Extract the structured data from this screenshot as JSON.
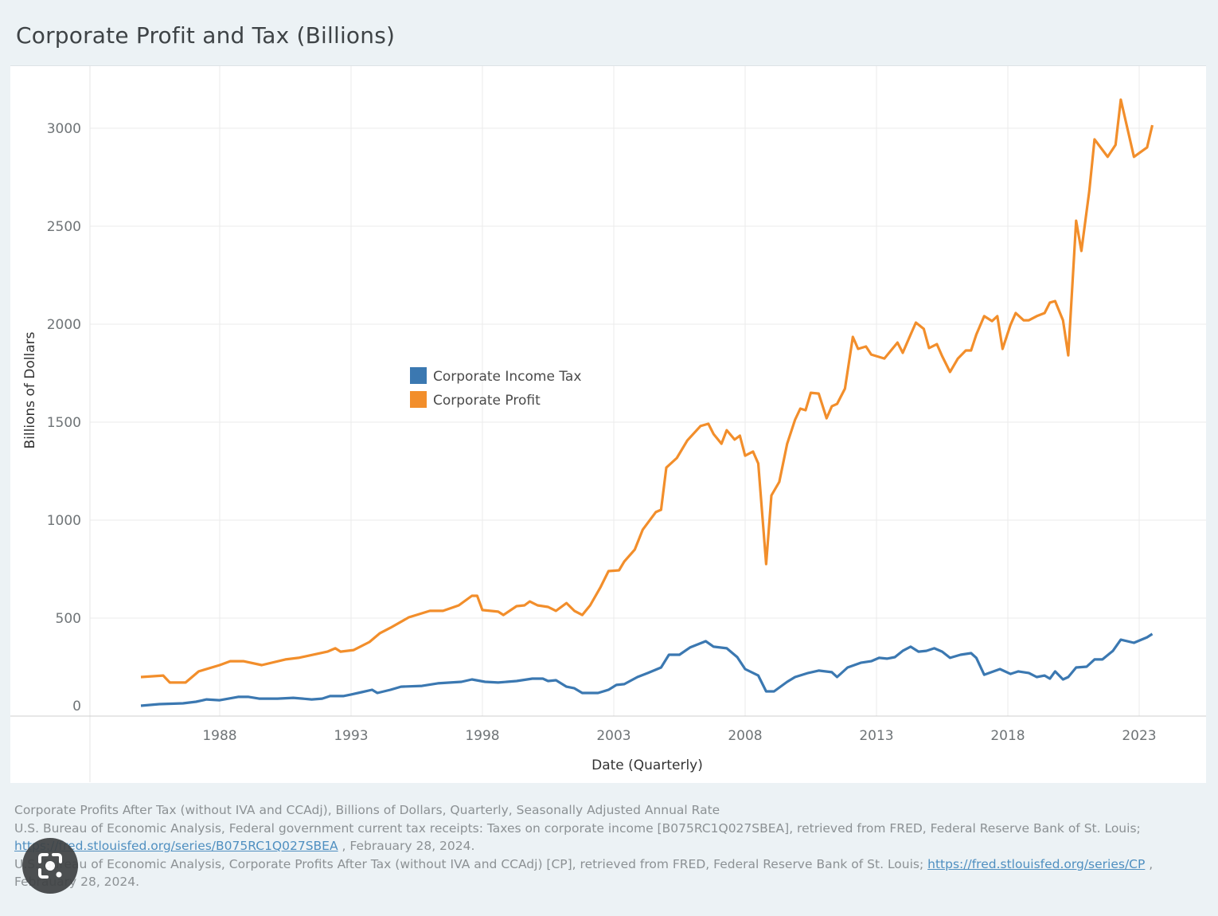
{
  "chart_data": {
    "type": "line",
    "title": "Corporate Profit and Tax (Billions)",
    "xlabel": "Date (Quarterly)",
    "ylabel": "Billions of Dollars",
    "xlim": [
      1983,
      2025.5
    ],
    "ylim": [
      0,
      3300
    ],
    "x_ticks": [
      1988,
      1993,
      1998,
      2003,
      2008,
      2013,
      2018,
      2023
    ],
    "y_ticks": [
      0,
      500,
      1000,
      1500,
      2000,
      2500,
      3000
    ],
    "grid": true,
    "legend_placement": "center",
    "series": [
      {
        "name": "Corporate Income Tax",
        "color": "#3b78b1",
        "points": [
          [
            1985,
            53
          ],
          [
            1985.7,
            61
          ],
          [
            1986.6,
            65
          ],
          [
            1987.1,
            73
          ],
          [
            1987.5,
            85
          ],
          [
            1988,
            81
          ],
          [
            1988.7,
            98
          ],
          [
            1989.1,
            98
          ],
          [
            1989.5,
            89
          ],
          [
            1990.2,
            89
          ],
          [
            1990.8,
            93
          ],
          [
            1991.5,
            85
          ],
          [
            1991.9,
            89
          ],
          [
            1992.2,
            102
          ],
          [
            1992.7,
            102
          ],
          [
            1993,
            110
          ],
          [
            1993.4,
            122
          ],
          [
            1993.8,
            134
          ],
          [
            1994,
            118
          ],
          [
            1994.5,
            134
          ],
          [
            1994.9,
            150
          ],
          [
            1995.7,
            154
          ],
          [
            1996.3,
            167
          ],
          [
            1997.2,
            175
          ],
          [
            1997.6,
            187
          ],
          [
            1998.1,
            175
          ],
          [
            1998.6,
            171
          ],
          [
            1999.3,
            179
          ],
          [
            1999.9,
            191
          ],
          [
            2000.3,
            191
          ],
          [
            2000.5,
            179
          ],
          [
            2000.8,
            183
          ],
          [
            2001.2,
            150
          ],
          [
            2001.5,
            142
          ],
          [
            2001.8,
            118
          ],
          [
            2002.4,
            118
          ],
          [
            2002.8,
            134
          ],
          [
            2003.1,
            159
          ],
          [
            2003.4,
            163
          ],
          [
            2003.9,
            199
          ],
          [
            2004.3,
            220
          ],
          [
            2004.8,
            248
          ],
          [
            2005.1,
            313
          ],
          [
            2005.5,
            313
          ],
          [
            2005.9,
            350
          ],
          [
            2006.5,
            382
          ],
          [
            2006.8,
            354
          ],
          [
            2007.3,
            346
          ],
          [
            2007.7,
            301
          ],
          [
            2008,
            240
          ],
          [
            2008.5,
            207
          ],
          [
            2008.8,
            126
          ],
          [
            2009.1,
            126
          ],
          [
            2009.6,
            175
          ],
          [
            2009.9,
            199
          ],
          [
            2010.4,
            220
          ],
          [
            2010.8,
            232
          ],
          [
            2011.3,
            224
          ],
          [
            2011.5,
            199
          ],
          [
            2011.9,
            248
          ],
          [
            2012.4,
            272
          ],
          [
            2012.8,
            280
          ],
          [
            2013.1,
            297
          ],
          [
            2013.4,
            293
          ],
          [
            2013.7,
            301
          ],
          [
            2014,
            333
          ],
          [
            2014.3,
            354
          ],
          [
            2014.6,
            329
          ],
          [
            2014.9,
            333
          ],
          [
            2015.2,
            346
          ],
          [
            2015.5,
            329
          ],
          [
            2015.8,
            297
          ],
          [
            2016.2,
            313
          ],
          [
            2016.6,
            321
          ],
          [
            2016.8,
            297
          ],
          [
            2017.1,
            211
          ],
          [
            2017.7,
            240
          ],
          [
            2018.1,
            215
          ],
          [
            2018.4,
            228
          ],
          [
            2018.8,
            220
          ],
          [
            2019.1,
            199
          ],
          [
            2019.4,
            207
          ],
          [
            2019.6,
            191
          ],
          [
            2019.8,
            228
          ],
          [
            2020.1,
            187
          ],
          [
            2020.3,
            199
          ],
          [
            2020.6,
            248
          ],
          [
            2021,
            252
          ],
          [
            2021.3,
            289
          ],
          [
            2021.6,
            289
          ],
          [
            2022,
            333
          ],
          [
            2022.3,
            390
          ],
          [
            2022.8,
            374
          ],
          [
            2023.3,
            402
          ],
          [
            2023.5,
            419
          ]
        ]
      },
      {
        "name": "Corporate Profit",
        "color": "#f28e2b",
        "points": [
          [
            1985,
            199
          ],
          [
            1985.85,
            207
          ],
          [
            1986.1,
            171
          ],
          [
            1986.7,
            171
          ],
          [
            1987.2,
            228
          ],
          [
            1988,
            260
          ],
          [
            1988.4,
            280
          ],
          [
            1988.9,
            280
          ],
          [
            1989.6,
            260
          ],
          [
            1990.5,
            289
          ],
          [
            1991,
            297
          ],
          [
            1992.1,
            329
          ],
          [
            1992.4,
            346
          ],
          [
            1992.6,
            329
          ],
          [
            1993.1,
            337
          ],
          [
            1993.7,
            378
          ],
          [
            1994.1,
            423
          ],
          [
            1994.5,
            451
          ],
          [
            1995.2,
            504
          ],
          [
            1996,
            537
          ],
          [
            1996.5,
            537
          ],
          [
            1997.1,
            565
          ],
          [
            1997.6,
            614
          ],
          [
            1997.8,
            614
          ],
          [
            1998,
            541
          ],
          [
            1998.6,
            533
          ],
          [
            1998.8,
            516
          ],
          [
            1999.3,
            561
          ],
          [
            1999.6,
            565
          ],
          [
            1999.8,
            585
          ],
          [
            2000.1,
            565
          ],
          [
            2000.5,
            557
          ],
          [
            2000.8,
            537
          ],
          [
            2001.2,
            577
          ],
          [
            2001.5,
            537
          ],
          [
            2001.8,
            516
          ],
          [
            2002.1,
            565
          ],
          [
            2002.5,
            659
          ],
          [
            2002.8,
            740
          ],
          [
            2003.2,
            744
          ],
          [
            2003.4,
            789
          ],
          [
            2003.8,
            850
          ],
          [
            2004.1,
            951
          ],
          [
            2004.6,
            1041
          ],
          [
            2004.8,
            1053
          ],
          [
            2005,
            1268
          ],
          [
            2005.4,
            1317
          ],
          [
            2005.8,
            1407
          ],
          [
            2006.3,
            1480
          ],
          [
            2006.6,
            1492
          ],
          [
            2006.8,
            1439
          ],
          [
            2007.1,
            1390
          ],
          [
            2007.3,
            1459
          ],
          [
            2007.6,
            1411
          ],
          [
            2007.8,
            1431
          ],
          [
            2008,
            1329
          ],
          [
            2008.3,
            1350
          ],
          [
            2008.5,
            1289
          ],
          [
            2008.8,
            776
          ],
          [
            2009,
            1126
          ],
          [
            2009.3,
            1195
          ],
          [
            2009.6,
            1390
          ],
          [
            2009.9,
            1512
          ],
          [
            2010.1,
            1569
          ],
          [
            2010.3,
            1561
          ],
          [
            2010.5,
            1650
          ],
          [
            2010.8,
            1646
          ],
          [
            2011.1,
            1520
          ],
          [
            2011.3,
            1581
          ],
          [
            2011.5,
            1593
          ],
          [
            2011.8,
            1671
          ],
          [
            2012.1,
            1935
          ],
          [
            2012.3,
            1874
          ],
          [
            2012.6,
            1886
          ],
          [
            2012.8,
            1845
          ],
          [
            2013.3,
            1825
          ],
          [
            2013.8,
            1906
          ],
          [
            2014,
            1854
          ],
          [
            2014.3,
            1947
          ],
          [
            2014.5,
            2008
          ],
          [
            2014.8,
            1976
          ],
          [
            2015,
            1878
          ],
          [
            2015.3,
            1898
          ],
          [
            2015.5,
            1837
          ],
          [
            2015.8,
            1756
          ],
          [
            2016.1,
            1825
          ],
          [
            2016.4,
            1866
          ],
          [
            2016.6,
            1866
          ],
          [
            2016.8,
            1947
          ],
          [
            2017.1,
            2041
          ],
          [
            2017.4,
            2016
          ],
          [
            2017.6,
            2041
          ],
          [
            2017.8,
            1874
          ],
          [
            2018.1,
            1996
          ],
          [
            2018.3,
            2057
          ],
          [
            2018.6,
            2020
          ],
          [
            2018.8,
            2020
          ],
          [
            2019.1,
            2041
          ],
          [
            2019.4,
            2057
          ],
          [
            2019.6,
            2110
          ],
          [
            2019.8,
            2118
          ],
          [
            2020.1,
            2020
          ],
          [
            2020.3,
            1841
          ],
          [
            2020.6,
            2528
          ],
          [
            2020.8,
            2374
          ],
          [
            2021.1,
            2679
          ],
          [
            2021.3,
            2943
          ],
          [
            2021.8,
            2854
          ],
          [
            2022.1,
            2915
          ],
          [
            2022.3,
            3146
          ],
          [
            2022.8,
            2854
          ],
          [
            2023.3,
            2902
          ],
          [
            2023.5,
            3016
          ]
        ]
      }
    ]
  },
  "footer": {
    "line1": "Corporate Profits After Tax (without IVA and CCAdj), Billions of Dollars, Quarterly, Seasonally Adjusted Annual Rate",
    "line2": "U.S. Bureau of Economic Analysis, Federal government current tax receipts: Taxes on corporate income [B075RC1Q027SBEA], retrieved from FRED, Federal Reserve Bank of St. Louis;",
    "link1": "https://fred.stlouisfed.org/series/B075RC1Q027SBEA",
    "line3_after": " , Febrauary 28, 2024.",
    "line4": "U.S. Bureau of Economic Analysis, Corporate Profits After Tax (without IVA and CCAdj) [CP], retrieved from FRED, Federal Reserve Bank of St. Louis; ",
    "link2": "https://fred.stlouisfed.org/series/CP",
    "line4_after": " ,",
    "line5": "Febrauary 28, 2024."
  },
  "overlay": {
    "icon": "lens-camera-icon"
  }
}
